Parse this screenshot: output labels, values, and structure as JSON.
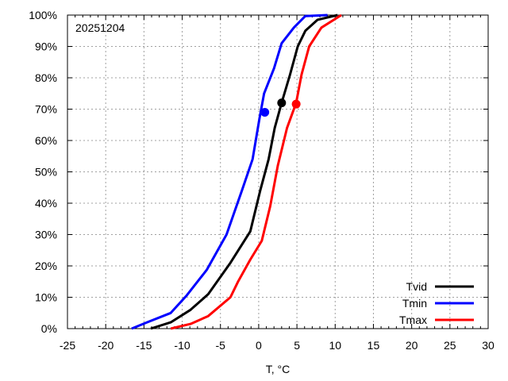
{
  "chart_data": {
    "type": "line",
    "title": "",
    "annotation": "20251204",
    "xlabel": "T, °C",
    "ylabel": "",
    "xlim": [
      -25,
      30
    ],
    "ylim": [
      0,
      100
    ],
    "xticks": [
      -25,
      -20,
      -15,
      -10,
      -5,
      0,
      5,
      10,
      15,
      20,
      25,
      30
    ],
    "yticks": [
      0,
      10,
      20,
      30,
      40,
      50,
      60,
      70,
      80,
      90,
      100
    ],
    "ytick_suffix": "%",
    "grid": true,
    "legend_position": "bottom-right",
    "series": [
      {
        "name": "Tvid",
        "color": "#000000",
        "points": [
          [
            -14.1,
            0
          ],
          [
            -11.5,
            2
          ],
          [
            -8.9,
            6
          ],
          [
            -6.6,
            11
          ],
          [
            -3.7,
            21
          ],
          [
            -1.1,
            31
          ],
          [
            0.2,
            44
          ],
          [
            1.3,
            54
          ],
          [
            2.1,
            64
          ],
          [
            3.0,
            72
          ],
          [
            4.1,
            81
          ],
          [
            5.1,
            90
          ],
          [
            6.1,
            95
          ],
          [
            7.7,
            98.5
          ],
          [
            10.3,
            100
          ]
        ],
        "marker": [
          3.0,
          72
        ]
      },
      {
        "name": "Tmin",
        "color": "#0000ff",
        "points": [
          [
            -16.6,
            0
          ],
          [
            -14.6,
            2
          ],
          [
            -11.5,
            5
          ],
          [
            -9.4,
            10.6
          ],
          [
            -6.8,
            18.7
          ],
          [
            -4.2,
            30
          ],
          [
            -2.2,
            44
          ],
          [
            -0.8,
            54
          ],
          [
            0.1,
            67
          ],
          [
            0.7,
            75
          ],
          [
            2.0,
            83
          ],
          [
            3.0,
            91
          ],
          [
            4.6,
            96
          ],
          [
            6.1,
            99.7
          ],
          [
            9.0,
            100
          ]
        ],
        "marker": [
          0.8,
          69
        ]
      },
      {
        "name": "Tmax",
        "color": "#ff0000",
        "points": [
          [
            -11.5,
            0
          ],
          [
            -8.9,
            1.5
          ],
          [
            -6.6,
            4
          ],
          [
            -3.7,
            10
          ],
          [
            -2.7,
            15
          ],
          [
            -1.1,
            22
          ],
          [
            0.4,
            28
          ],
          [
            1.5,
            39
          ],
          [
            2.5,
            52
          ],
          [
            3.7,
            64
          ],
          [
            4.9,
            72
          ],
          [
            5.6,
            81
          ],
          [
            6.6,
            90
          ],
          [
            8.2,
            96
          ],
          [
            10.8,
            100
          ]
        ],
        "marker": [
          4.9,
          71.6
        ]
      }
    ]
  }
}
